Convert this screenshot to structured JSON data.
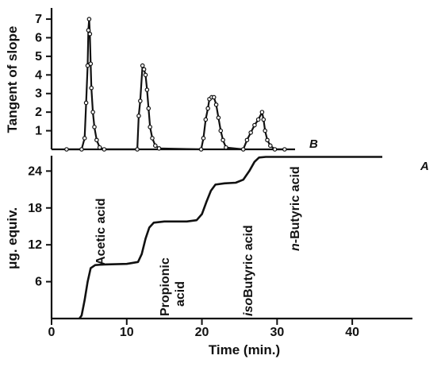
{
  "chart_data": [
    {
      "type": "line",
      "panel": "upper",
      "ylabel": "Tangent of slope",
      "xlim": [
        0,
        46
      ],
      "ylim": [
        0,
        7.6
      ],
      "yticks": [
        1,
        2,
        3,
        4,
        5,
        6,
        7
      ],
      "grid": false,
      "series": [
        {
          "name": "B",
          "points": [
            [
              2.0,
              0
            ],
            [
              4.0,
              0
            ],
            [
              4.4,
              0.6
            ],
            [
              4.6,
              2.5
            ],
            [
              4.8,
              4.5
            ],
            [
              4.9,
              6.4
            ],
            [
              5.0,
              7.0
            ],
            [
              5.1,
              6.2
            ],
            [
              5.2,
              4.6
            ],
            [
              5.3,
              3.3
            ],
            [
              5.5,
              2.0
            ],
            [
              5.7,
              1.2
            ],
            [
              6.0,
              0.5
            ],
            [
              6.4,
              0.1
            ],
            [
              7.0,
              0
            ],
            [
              11.4,
              0
            ],
            [
              11.6,
              1.8
            ],
            [
              11.8,
              2.6
            ],
            [
              12.1,
              4.5
            ],
            [
              12.3,
              4.3
            ],
            [
              12.5,
              4.0
            ],
            [
              12.7,
              3.2
            ],
            [
              12.9,
              2.2
            ],
            [
              13.1,
              1.2
            ],
            [
              13.4,
              0.6
            ],
            [
              13.8,
              0.2
            ],
            [
              14.3,
              0.05
            ],
            [
              19.9,
              0
            ],
            [
              20.2,
              0.6
            ],
            [
              20.5,
              1.6
            ],
            [
              20.8,
              2.2
            ],
            [
              21.0,
              2.7
            ],
            [
              21.3,
              2.8
            ],
            [
              21.6,
              2.8
            ],
            [
              21.9,
              2.4
            ],
            [
              22.2,
              1.7
            ],
            [
              22.5,
              1.0
            ],
            [
              22.8,
              0.5
            ],
            [
              23.2,
              0.1
            ],
            [
              25.5,
              0
            ],
            [
              26.0,
              0.5
            ],
            [
              26.5,
              0.9
            ],
            [
              27.0,
              1.3
            ],
            [
              27.5,
              1.6
            ],
            [
              28.0,
              2.0
            ],
            [
              28.2,
              1.6
            ],
            [
              28.4,
              1.0
            ],
            [
              28.7,
              0.5
            ],
            [
              29.1,
              0.2
            ],
            [
              29.7,
              0
            ],
            [
              31.0,
              0
            ]
          ]
        }
      ]
    },
    {
      "type": "line",
      "panel": "lower",
      "xlabel": "Time (min.)",
      "ylabel": "μg. equiv.",
      "xlim": [
        0,
        46
      ],
      "ylim": [
        0,
        26.5
      ],
      "xticks": [
        0,
        10,
        20,
        30,
        40
      ],
      "yticks": [
        6,
        12,
        18,
        24
      ],
      "grid": false,
      "series": [
        {
          "name": "A",
          "points": [
            [
              3.7,
              0
            ],
            [
              4.0,
              0.5
            ],
            [
              4.4,
              3.0
            ],
            [
              4.8,
              6.0
            ],
            [
              5.2,
              8.2
            ],
            [
              5.8,
              8.7
            ],
            [
              7.0,
              8.8
            ],
            [
              10.0,
              8.9
            ],
            [
              11.5,
              9.2
            ],
            [
              12.0,
              10.5
            ],
            [
              12.5,
              13.0
            ],
            [
              13.0,
              14.8
            ],
            [
              13.6,
              15.6
            ],
            [
              15.0,
              15.8
            ],
            [
              18.0,
              15.8
            ],
            [
              19.3,
              16.0
            ],
            [
              20.0,
              17.0
            ],
            [
              20.6,
              19.0
            ],
            [
              21.2,
              20.8
            ],
            [
              21.8,
              21.8
            ],
            [
              23.0,
              22.0
            ],
            [
              24.5,
              22.1
            ],
            [
              25.5,
              22.6
            ],
            [
              26.3,
              24.0
            ],
            [
              27.0,
              25.5
            ],
            [
              27.6,
              26.2
            ],
            [
              28.5,
              26.3
            ],
            [
              44.0,
              26.3
            ]
          ]
        }
      ],
      "annotations": [
        "Acetic acid",
        "Propionic acid",
        "isoButyric acid",
        "n-Butyric acid"
      ]
    }
  ]
}
